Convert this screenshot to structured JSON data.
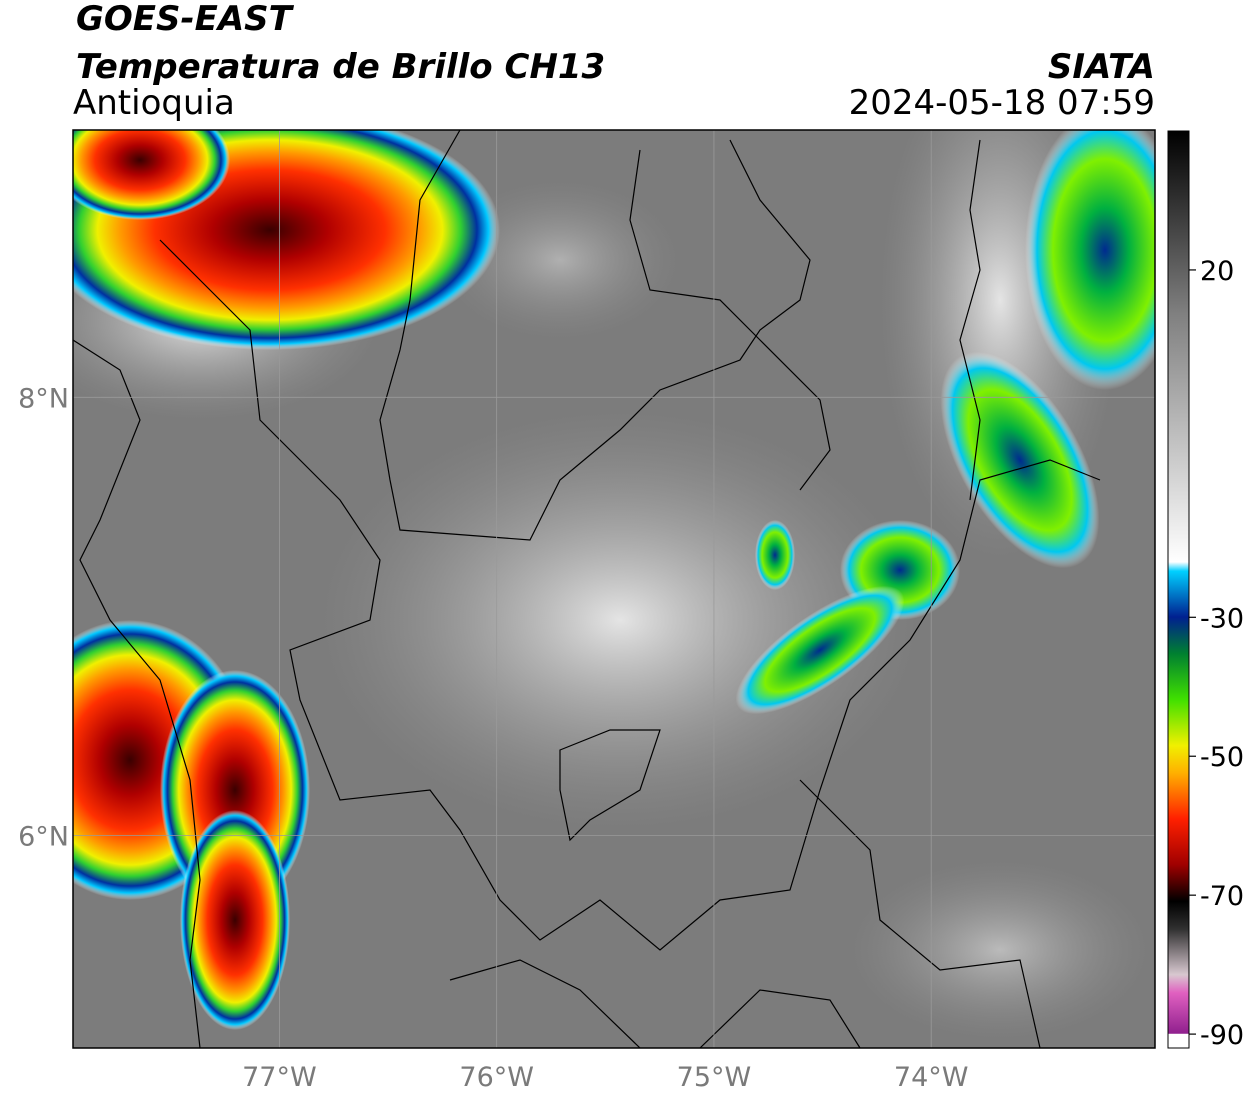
{
  "header": {
    "title": "GOES-EAST",
    "subtitle": "Temperatura de Brillo CH13",
    "region": "Antioquia",
    "source": "SIATA",
    "timestamp": "2024-05-18 07:59"
  },
  "map": {
    "xlim": [
      -77.95,
      -72.97
    ],
    "ylim": [
      5.03,
      9.22
    ],
    "xticks": [
      {
        "value": -77,
        "label": "77°W"
      },
      {
        "value": -76,
        "label": "76°W"
      },
      {
        "value": -75,
        "label": "75°W"
      },
      {
        "value": -74,
        "label": "74°W"
      }
    ],
    "yticks": [
      {
        "value": 8,
        "label": "8°N"
      },
      {
        "value": 6,
        "label": "6°N"
      }
    ],
    "grid": true
  },
  "colorbar": {
    "lim": [
      -92,
      40
    ],
    "ticks": [
      20,
      -30,
      -50,
      -70,
      -90
    ]
  }
}
